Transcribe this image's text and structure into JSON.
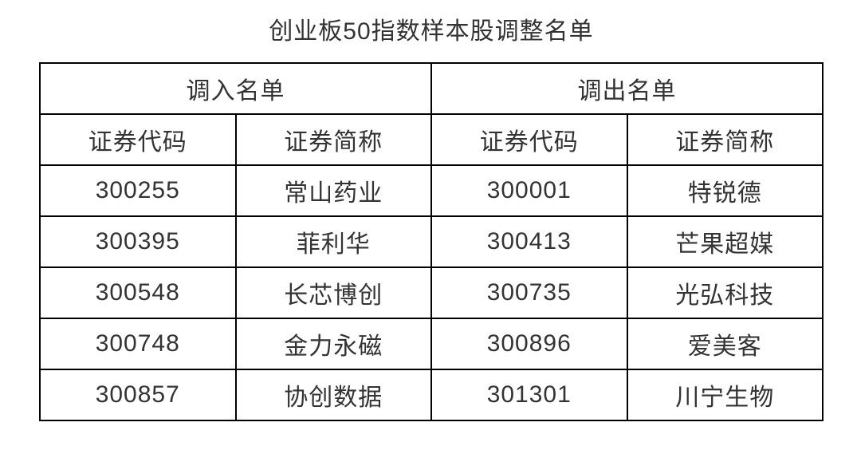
{
  "title": "创业板50指数样本股调整名单",
  "colors": {
    "background": "#ffffff",
    "border": "#000000",
    "text": "#333333"
  },
  "table": {
    "group_headers": {
      "in": "调入名单",
      "out": "调出名单"
    },
    "column_headers": {
      "in_code": "证券代码",
      "in_name": "证券简称",
      "out_code": "证券代码",
      "out_name": "证券简称"
    },
    "rows": [
      {
        "in_code": "300255",
        "in_name": "常山药业",
        "out_code": "300001",
        "out_name": "特锐德"
      },
      {
        "in_code": "300395",
        "in_name": "菲利华",
        "out_code": "300413",
        "out_name": "芒果超媒"
      },
      {
        "in_code": "300548",
        "in_name": "长芯博创",
        "out_code": "300735",
        "out_name": "光弘科技"
      },
      {
        "in_code": "300748",
        "in_name": "金力永磁",
        "out_code": "300896",
        "out_name": "爱美客"
      },
      {
        "in_code": "300857",
        "in_name": "协创数据",
        "out_code": "301301",
        "out_name": "川宁生物"
      }
    ]
  }
}
